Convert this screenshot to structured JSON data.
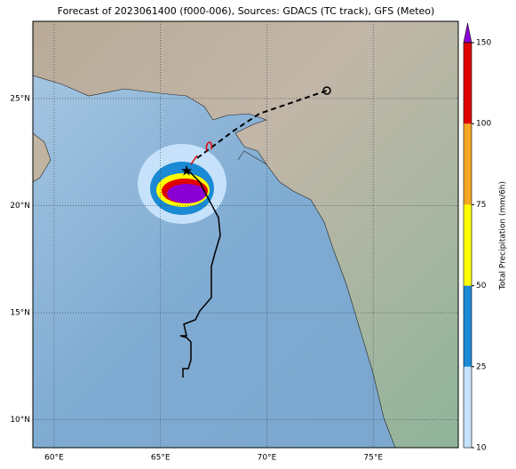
{
  "title": "Forecast of 2023061400 (f000-006), Sources: GDACS (TC track), GFS (Meteo)",
  "map": {
    "xlim": [
      59,
      79
    ],
    "ylim": [
      8.7,
      28.6
    ],
    "xticks": [
      {
        "value": 60,
        "label": "60°E"
      },
      {
        "value": 65,
        "label": "65°E"
      },
      {
        "value": 70,
        "label": "70°E"
      },
      {
        "value": 75,
        "label": "75°E"
      }
    ],
    "yticks": [
      {
        "value": 10,
        "label": "10°N"
      },
      {
        "value": 15,
        "label": "15°N"
      },
      {
        "value": 20,
        "label": "20°N"
      },
      {
        "value": 25,
        "label": "25°N"
      }
    ],
    "grid": true
  },
  "colorbar": {
    "label": "Total Precipitation (mm/6h)",
    "levels": [
      10,
      25,
      50,
      75,
      100,
      150
    ],
    "colors": [
      "#c6e2fb",
      "#1a8ad4",
      "#ffff00",
      "#f5a623",
      "#e00000"
    ],
    "extend_color": "#8a00d4"
  }
}
